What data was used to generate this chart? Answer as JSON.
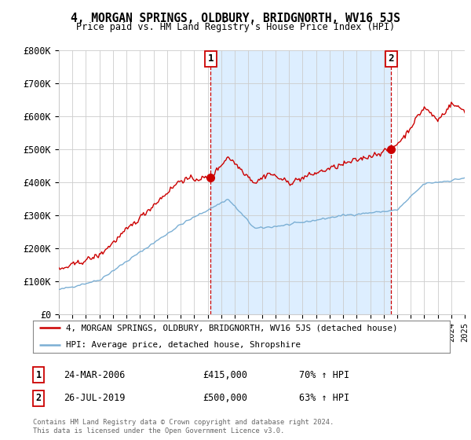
{
  "title": "4, MORGAN SPRINGS, OLDBURY, BRIDGNORTH, WV16 5JS",
  "subtitle": "Price paid vs. HM Land Registry's House Price Index (HPI)",
  "ylabel_values": [
    "£0",
    "£100K",
    "£200K",
    "£300K",
    "£400K",
    "£500K",
    "£600K",
    "£700K",
    "£800K"
  ],
  "ylim": [
    0,
    800000
  ],
  "xlim_start": 1995,
  "xlim_end": 2025,
  "sale1_date_year": 2006.22,
  "sale1_price": 415000,
  "sale2_date_year": 2019.56,
  "sale2_price": 500000,
  "legend_line1": "4, MORGAN SPRINGS, OLDBURY, BRIDGNORTH, WV16 5JS (detached house)",
  "legend_line2": "HPI: Average price, detached house, Shropshire",
  "footer": "Contains HM Land Registry data © Crown copyright and database right 2024.\nThis data is licensed under the Open Government Licence v3.0.",
  "line1_color": "#cc0000",
  "line2_color": "#7bafd4",
  "shade_color": "#ddeeff",
  "background_color": "#ffffff",
  "grid_color": "#cccccc",
  "box_border_color": "#cc0000"
}
